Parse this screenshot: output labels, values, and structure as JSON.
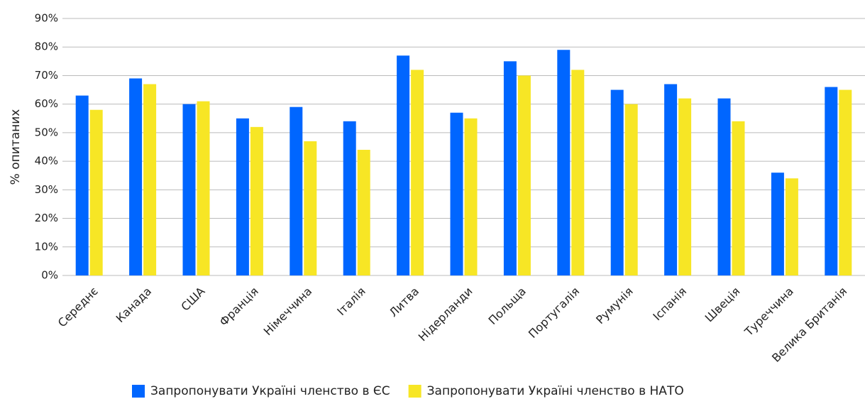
{
  "chart_data": {
    "type": "bar",
    "y_axis_label": "% опитаних",
    "categories": [
      "Середнє",
      "Канада",
      "США",
      "Франція",
      "Німеччина",
      "Італія",
      "Литва",
      "Нідерланди",
      "Польща",
      "Португалія",
      "Румунія",
      "Іспанія",
      "Швеція",
      "Туреччина",
      "Велика Британія"
    ],
    "series": [
      {
        "name": "Запропонувати Україні членство в ЄС",
        "color": "#0066ff",
        "values": [
          63,
          69,
          60,
          55,
          59,
          54,
          77,
          57,
          75,
          79,
          65,
          67,
          62,
          36,
          66
        ]
      },
      {
        "name": "Запропонувати Україні членство в НАТО",
        "color": "#f7e625",
        "values": [
          58,
          67,
          61,
          52,
          47,
          44,
          72,
          55,
          70,
          72,
          60,
          62,
          54,
          34,
          65
        ]
      }
    ],
    "ylim": [
      0,
      90
    ],
    "yticks": [
      {
        "value": 0,
        "label": "0%"
      },
      {
        "value": 10,
        "label": "10%"
      },
      {
        "value": 20,
        "label": "20%"
      },
      {
        "value": 30,
        "label": "30%"
      },
      {
        "value": 40,
        "label": "40%"
      },
      {
        "value": 50,
        "label": "50%"
      },
      {
        "value": 60,
        "label": "60%"
      },
      {
        "value": 70,
        "label": "70%"
      },
      {
        "value": 80,
        "label": "80%"
      },
      {
        "value": 90,
        "label": "90%"
      }
    ],
    "grid": true,
    "legend": "bottom"
  }
}
